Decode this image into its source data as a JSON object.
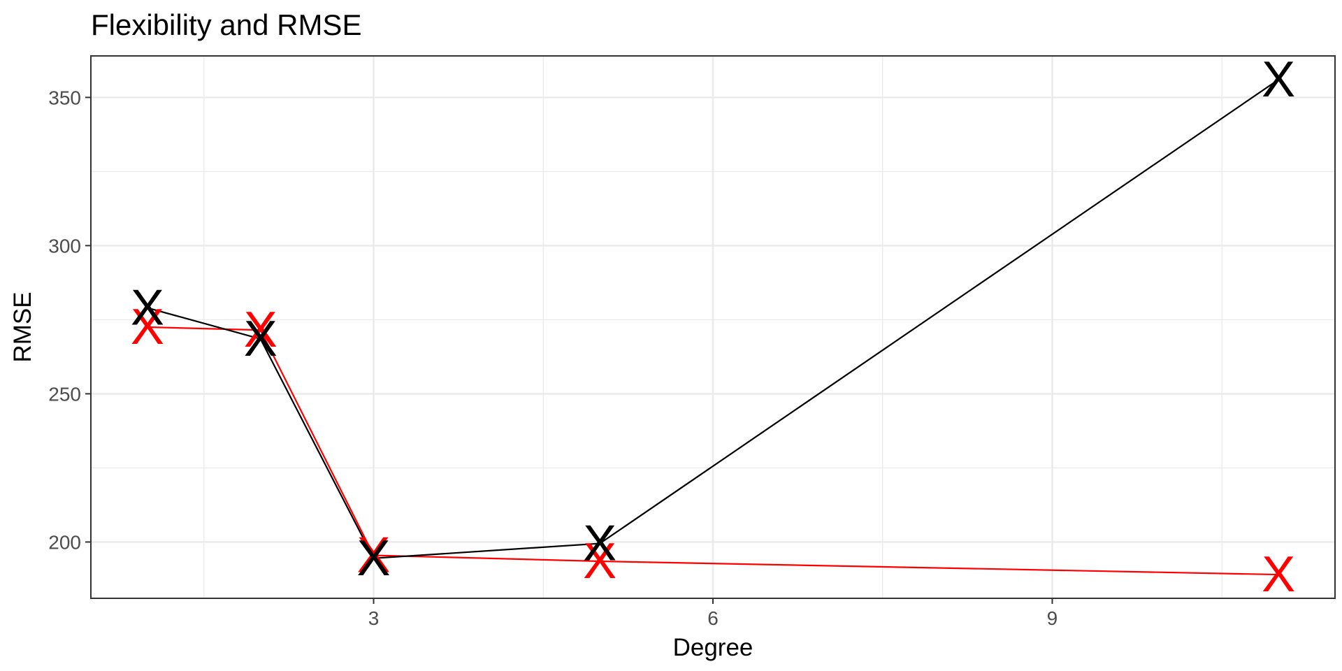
{
  "chart_data": {
    "type": "line",
    "title": "Flexibility and RMSE",
    "xlabel": "Degree",
    "ylabel": "RMSE",
    "x": [
      1,
      2,
      3,
      5,
      11
    ],
    "xlim": [
      0.5,
      11.5
    ],
    "ylim": [
      181,
      364
    ],
    "xticks": [
      3,
      6,
      9
    ],
    "xticks_minor": [
      1.5,
      4.5,
      7.5,
      10.5
    ],
    "yticks": [
      200,
      250,
      300,
      350
    ],
    "yticks_minor": [
      225,
      275,
      325
    ],
    "grid": true,
    "marker_label": "X",
    "series": [
      {
        "color": "#ff0000",
        "values": [
          272.5,
          271.5,
          195.5,
          193.5,
          189
        ]
      },
      {
        "color": "#000000",
        "values": [
          279,
          268.5,
          194.5,
          199.5,
          356
        ]
      }
    ]
  }
}
